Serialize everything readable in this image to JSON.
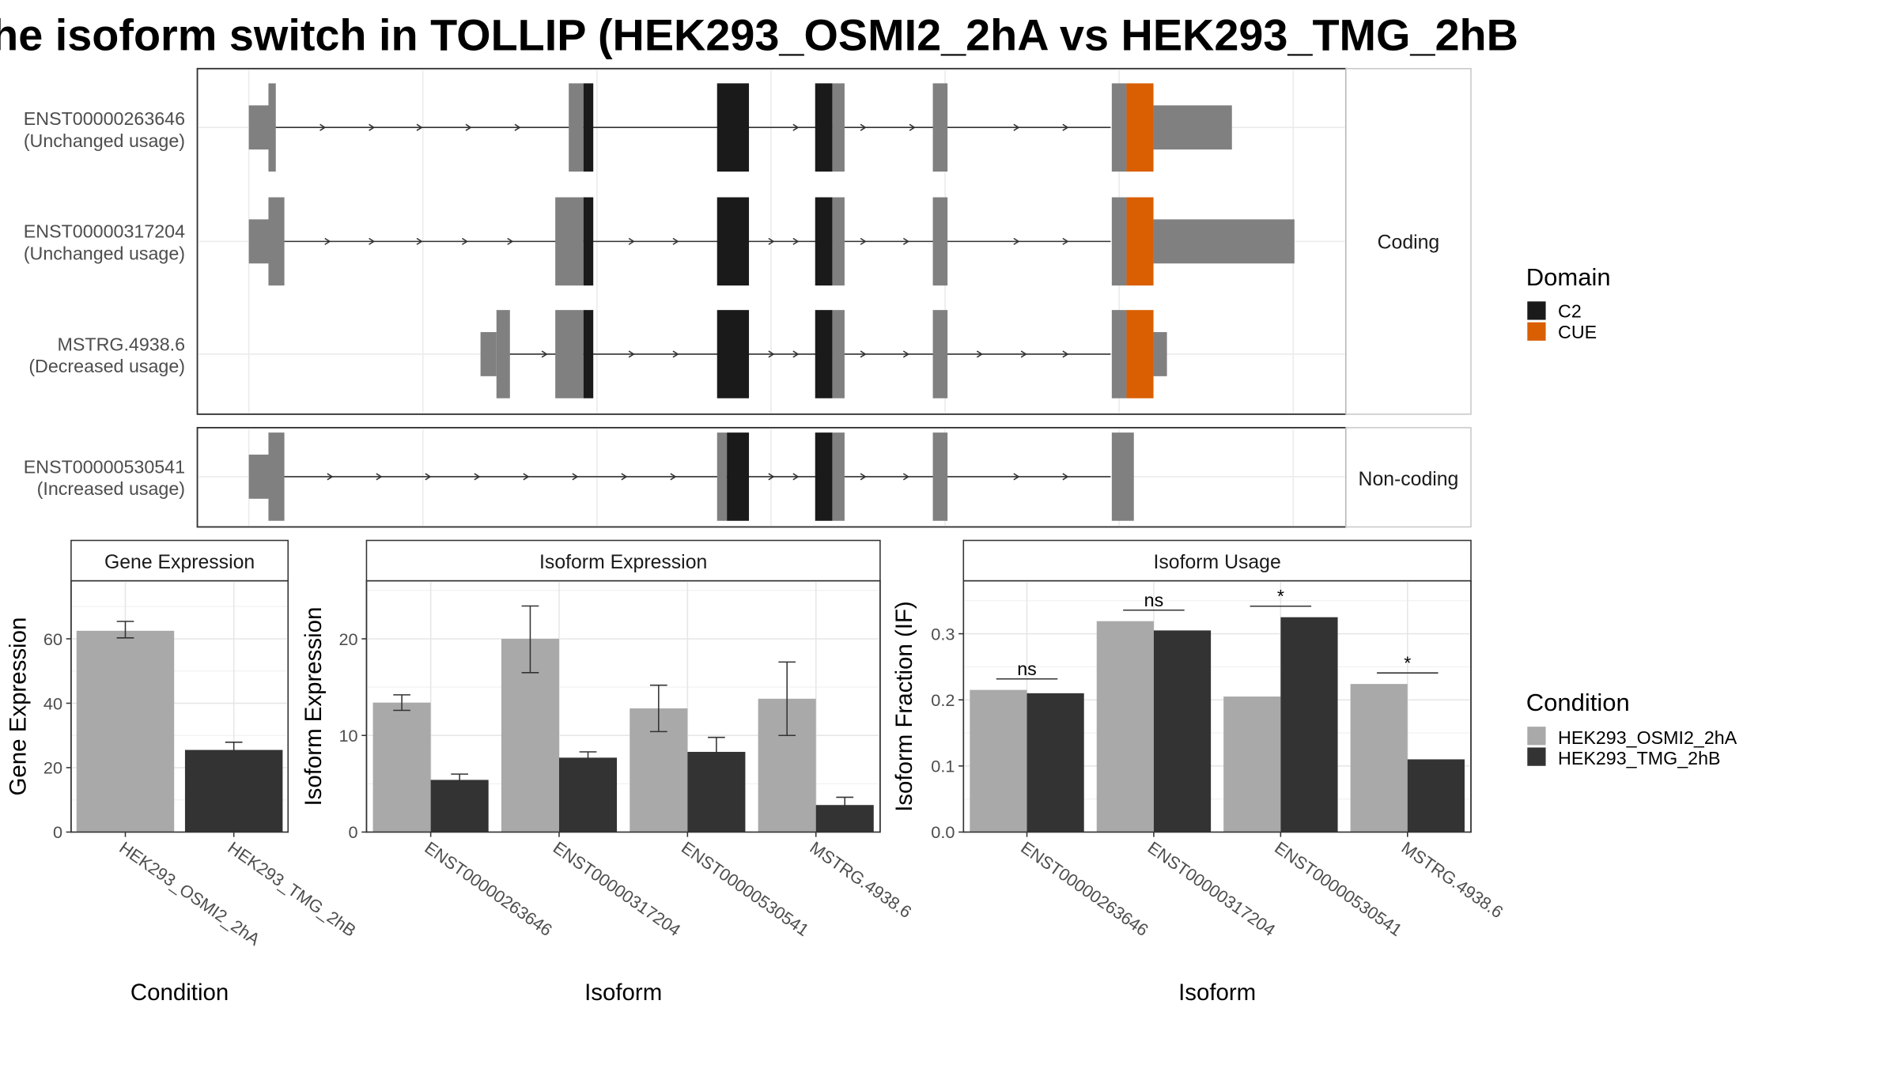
{
  "title": "he isoform switch in TOLLIP (HEK293_OSMI2_2hA vs HEK293_TMG_2hB",
  "colors": {
    "exon": "#808080",
    "C2": "#1a1a1a",
    "CUE": "#d95f02",
    "cond_a": "#a9a9a9",
    "cond_b": "#333333"
  },
  "chart_data": [
    {
      "type": "gene-structure",
      "panels": [
        {
          "strip": "Coding",
          "transcripts": [
            {
              "id": "ENST00000263646",
              "usage": "(Unchanged usage)"
            },
            {
              "id": "ENST00000317204",
              "usage": "(Unchanged usage)"
            },
            {
              "id": "MSTRG.4938.6",
              "usage": "(Decreased usage)"
            }
          ]
        },
        {
          "strip": "Non-coding",
          "transcripts": [
            {
              "id": "ENST00000530541",
              "usage": "(Increased usage)"
            }
          ]
        }
      ],
      "legend": {
        "title": "Domain",
        "items": [
          {
            "name": "C2",
            "color": "#1a1a1a"
          },
          {
            "name": "CUE",
            "color": "#d95f02"
          }
        ]
      }
    },
    {
      "type": "bar",
      "title": "Gene Expression",
      "xlabel": "Condition",
      "ylabel": "Gene Expression",
      "categories": [
        "HEK293_OSMI2_2hA",
        "HEK293_TMG_2hB"
      ],
      "values": [
        62.5,
        25.5
      ],
      "errors": [
        [
          60.3,
          65.4
        ],
        [
          23.4,
          27.9
        ]
      ],
      "ylim": [
        0,
        78
      ],
      "yticks": [
        0,
        20,
        40,
        60
      ]
    },
    {
      "type": "bar",
      "title": "Isoform Expression",
      "xlabel": "Isoform",
      "ylabel": "Isoform Expression",
      "categories": [
        "ENST00000263646",
        "ENST00000317204",
        "ENST00000530541",
        "MSTRG.4938.6"
      ],
      "series": [
        {
          "name": "HEK293_OSMI2_2hA",
          "values": [
            13.4,
            20.0,
            12.8,
            13.8
          ],
          "errors": [
            [
              12.6,
              14.2
            ],
            [
              16.5,
              23.4
            ],
            [
              10.4,
              15.2
            ],
            [
              10.0,
              17.6
            ]
          ]
        },
        {
          "name": "HEK293_TMG_2hB",
          "values": [
            5.4,
            7.7,
            8.3,
            2.8
          ],
          "errors": [
            [
              4.8,
              6.0
            ],
            [
              7.1,
              8.3
            ],
            [
              6.7,
              9.8
            ],
            [
              2.0,
              3.6
            ]
          ]
        }
      ],
      "ylim": [
        0,
        26
      ],
      "yticks": [
        0,
        10,
        20
      ]
    },
    {
      "type": "bar",
      "title": "Isoform Usage",
      "xlabel": "Isoform",
      "ylabel": "Isoform Fraction (IF)",
      "categories": [
        "ENST00000263646",
        "ENST00000317204",
        "ENST00000530541",
        "MSTRG.4938.6"
      ],
      "series": [
        {
          "name": "HEK293_OSMI2_2hA",
          "values": [
            0.215,
            0.319,
            0.205,
            0.224
          ]
        },
        {
          "name": "HEK293_TMG_2hB",
          "values": [
            0.21,
            0.305,
            0.325,
            0.11
          ]
        }
      ],
      "significance": [
        "ns",
        "ns",
        "*",
        "*"
      ],
      "ylim": [
        0,
        0.38
      ],
      "yticks": [
        0.0,
        0.1,
        0.2,
        0.3
      ],
      "ytick_labels": [
        "0.0",
        "0.1",
        "0.2",
        "0.3"
      ]
    }
  ],
  "condition_legend": {
    "title": "Condition",
    "items": [
      "HEK293_OSMI2_2hA",
      "HEK293_TMG_2hB"
    ]
  }
}
